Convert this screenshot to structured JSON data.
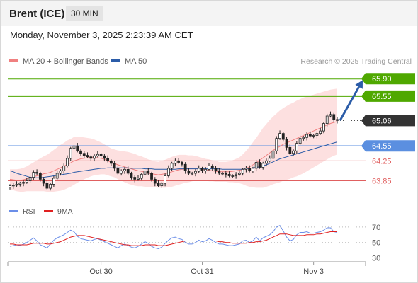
{
  "header": {
    "instrument": "Brent (ICE)",
    "timeframe": "30 MIN",
    "datetime": "Monday, November 3, 2025 2:23:39 AM CET"
  },
  "colors": {
    "green": "#4fa800",
    "blue": "#5b8fe0",
    "red": "#e06060",
    "candle": "#222222",
    "ma20": "#f08080",
    "ma50": "#2b5ca8",
    "band": "#fde0e0",
    "rsi": "#6b8ee8",
    "rsi_ma": "#e02020",
    "arrow": "#2b5ca8"
  },
  "chart_data": [
    {
      "type": "candlestick",
      "legend": [
        {
          "label": "MA 20 + Bollinger Bands",
          "color": "#f08080"
        },
        {
          "label": "MA 50",
          "color": "#2b5ca8"
        }
      ],
      "legend_position": "top-left",
      "copyright": "Research © 2025 Trading Central",
      "y_range": [
        63.36,
        66.13
      ],
      "x_ticks": [
        {
          "label": "Oct 30",
          "index": 27
        },
        {
          "label": "Oct 31",
          "index": 57
        },
        {
          "label": "Nov 3",
          "index": 90
        }
      ],
      "levels": [
        {
          "value": 65.9,
          "label": "65.90",
          "style": "green",
          "tag": true
        },
        {
          "value": 65.55,
          "label": "65.55",
          "style": "green",
          "tag": true
        },
        {
          "value": 65.06,
          "label": "65.06",
          "style": "last",
          "tag": true
        },
        {
          "value": 64.55,
          "label": "64.55",
          "style": "blue",
          "tag": true
        },
        {
          "value": 64.25,
          "label": "64.25",
          "style": "red",
          "tag": false
        },
        {
          "value": 63.85,
          "label": "63.85",
          "style": "red",
          "tag": false
        }
      ],
      "close": [
        63.75,
        63.76,
        63.78,
        63.8,
        63.82,
        63.85,
        63.92,
        64.02,
        64.0,
        63.88,
        63.8,
        63.7,
        63.78,
        63.9,
        64.0,
        64.05,
        64.15,
        64.3,
        64.5,
        64.55,
        64.45,
        64.4,
        64.36,
        64.33,
        64.3,
        64.35,
        64.38,
        64.35,
        64.3,
        64.25,
        64.2,
        64.1,
        64.0,
        64.05,
        64.08,
        64.0,
        63.92,
        63.88,
        63.9,
        63.98,
        64.05,
        64.0,
        63.88,
        63.8,
        63.75,
        63.8,
        63.95,
        64.1,
        64.2,
        64.25,
        64.22,
        64.18,
        64.05,
        64.0,
        64.0,
        64.04,
        64.1,
        64.05,
        64.08,
        64.15,
        64.1,
        64.05,
        64.0,
        64.0,
        63.98,
        63.95,
        63.95,
        63.98,
        64.0,
        64.08,
        64.1,
        64.05,
        64.1,
        64.22,
        64.12,
        64.2,
        64.25,
        64.3,
        64.45,
        64.7,
        64.8,
        64.68,
        64.52,
        64.4,
        64.45,
        64.6,
        64.7,
        64.72,
        64.78,
        64.75,
        64.76,
        64.8,
        64.85,
        65.0,
        65.15,
        65.18,
        65.08,
        65.06
      ],
      "ma20": [
        63.88,
        63.87,
        63.86,
        63.86,
        63.87,
        63.89,
        63.91,
        63.93,
        63.95,
        63.97,
        63.99,
        64.0,
        64.02,
        64.05,
        64.08,
        64.11,
        64.14,
        64.18,
        64.21,
        64.25,
        64.27,
        64.29,
        64.3,
        64.31,
        64.32,
        64.32,
        64.31,
        64.3,
        64.28,
        64.25,
        64.22,
        64.2,
        64.17,
        64.15,
        64.13,
        64.11,
        64.09,
        64.07,
        64.05,
        64.04,
        64.02,
        64.0,
        63.99,
        63.98,
        63.97,
        63.98,
        63.99,
        64.01,
        64.03,
        64.05,
        64.07,
        64.08,
        64.09,
        64.09,
        64.1,
        64.1,
        64.09,
        64.08,
        64.07,
        64.06,
        64.05,
        64.04,
        64.03,
        64.03,
        64.03,
        64.03,
        64.04,
        64.05,
        64.06,
        64.08,
        64.1,
        64.13,
        64.17,
        64.21,
        64.26,
        64.31,
        64.36,
        64.41,
        64.46,
        64.5,
        64.54,
        64.58,
        64.61,
        64.64,
        64.67,
        64.7,
        64.73,
        64.76,
        64.79,
        64.82,
        64.85,
        64.88,
        64.91,
        64.94,
        64.97,
        65.0,
        65.02,
        65.04
      ],
      "ma50": [
        64.05,
        64.03,
        64.0,
        63.98,
        63.96,
        63.94,
        63.92,
        63.91,
        63.91,
        63.91,
        63.92,
        63.93,
        63.94,
        63.95,
        63.96,
        63.97,
        63.98,
        63.99,
        64.0,
        64.02,
        64.03,
        64.04,
        64.05,
        64.06,
        64.07,
        64.08,
        64.09,
        64.1,
        64.1,
        64.11,
        64.11,
        64.11,
        64.11,
        64.11,
        64.11,
        64.11,
        64.1,
        64.1,
        64.1,
        64.1,
        64.09,
        64.09,
        64.09,
        64.08,
        64.08,
        64.08,
        64.08,
        64.08,
        64.08,
        64.08,
        64.09,
        64.09,
        64.09,
        64.09,
        64.09,
        64.09,
        64.09,
        64.09,
        64.09,
        64.09,
        64.09,
        64.09,
        64.09,
        64.08,
        64.08,
        64.08,
        64.08,
        64.08,
        64.08,
        64.08,
        64.09,
        64.1,
        64.11,
        64.12,
        64.13,
        64.15,
        64.17,
        64.2,
        64.23,
        64.26,
        64.29,
        64.31,
        64.33,
        64.35,
        64.37,
        64.39,
        64.41,
        64.43,
        64.45,
        64.47,
        64.49,
        64.51,
        64.53,
        64.55,
        64.57,
        64.59,
        64.61,
        64.63
      ],
      "bb_halfwidth": [
        0.2,
        0.21,
        0.22,
        0.23,
        0.24,
        0.25,
        0.27,
        0.29,
        0.31,
        0.33,
        0.35,
        0.37,
        0.4,
        0.42,
        0.44,
        0.46,
        0.47,
        0.48,
        0.48,
        0.48,
        0.46,
        0.44,
        0.42,
        0.4,
        0.38,
        0.36,
        0.34,
        0.32,
        0.3,
        0.29,
        0.28,
        0.28,
        0.29,
        0.3,
        0.31,
        0.32,
        0.32,
        0.32,
        0.31,
        0.3,
        0.29,
        0.28,
        0.27,
        0.26,
        0.26,
        0.27,
        0.28,
        0.29,
        0.3,
        0.3,
        0.3,
        0.29,
        0.28,
        0.27,
        0.26,
        0.25,
        0.24,
        0.23,
        0.22,
        0.22,
        0.21,
        0.21,
        0.2,
        0.2,
        0.2,
        0.21,
        0.22,
        0.24,
        0.26,
        0.3,
        0.35,
        0.4,
        0.45,
        0.5,
        0.55,
        0.6,
        0.63,
        0.66,
        0.68,
        0.7,
        0.72,
        0.73,
        0.74,
        0.75,
        0.75,
        0.76,
        0.76,
        0.76,
        0.75,
        0.74,
        0.73,
        0.72,
        0.71,
        0.7,
        0.69,
        0.68,
        0.67,
        0.66
      ],
      "projection": {
        "from": 65.06,
        "to": 65.9
      }
    },
    {
      "type": "line",
      "legend": [
        {
          "label": "RSI",
          "color": "#6b8ee8"
        },
        {
          "label": "9MA",
          "color": "#e02020"
        }
      ],
      "legend_position": "top-left",
      "y_range": [
        25,
        80
      ],
      "y_ticks": [
        {
          "value": 70,
          "label": "70"
        },
        {
          "value": 50,
          "label": "50"
        },
        {
          "value": 30,
          "label": "30"
        }
      ],
      "rsi": [
        45,
        46,
        47,
        46,
        48,
        50,
        53,
        56,
        52,
        47,
        45,
        43,
        48,
        53,
        56,
        58,
        60,
        63,
        66,
        64,
        58,
        55,
        54,
        53,
        52,
        54,
        55,
        53,
        51,
        49,
        47,
        45,
        43,
        46,
        48,
        46,
        44,
        43,
        45,
        48,
        51,
        49,
        45,
        43,
        42,
        44,
        49,
        53,
        56,
        57,
        55,
        54,
        50,
        48,
        48,
        50,
        53,
        51,
        52,
        55,
        53,
        50,
        48,
        48,
        47,
        46,
        46,
        47,
        48,
        52,
        53,
        50,
        52,
        57,
        52,
        56,
        58,
        60,
        64,
        70,
        72,
        65,
        57,
        52,
        54,
        60,
        63,
        63,
        64,
        62,
        62,
        63,
        64,
        66,
        69,
        69,
        64,
        63
      ],
      "rsi_ma": [
        48,
        48,
        47,
        47,
        47,
        47,
        48,
        49,
        49,
        49,
        49,
        48,
        48,
        49,
        50,
        51,
        53,
        55,
        57,
        58,
        59,
        59,
        59,
        58,
        57,
        56,
        55,
        54,
        53,
        52,
        51,
        50,
        49,
        48,
        47,
        47,
        46,
        46,
        46,
        46,
        47,
        47,
        47,
        47,
        46,
        46,
        46,
        47,
        48,
        49,
        50,
        51,
        52,
        52,
        52,
        52,
        52,
        52,
        52,
        52,
        52,
        52,
        51,
        51,
        50,
        50,
        49,
        49,
        49,
        49,
        49,
        50,
        50,
        51,
        51,
        52,
        53,
        55,
        57,
        59,
        61,
        61,
        61,
        60,
        59,
        59,
        59,
        59,
        60,
        60,
        60,
        61,
        61,
        62,
        63,
        64,
        64,
        64
      ]
    }
  ]
}
